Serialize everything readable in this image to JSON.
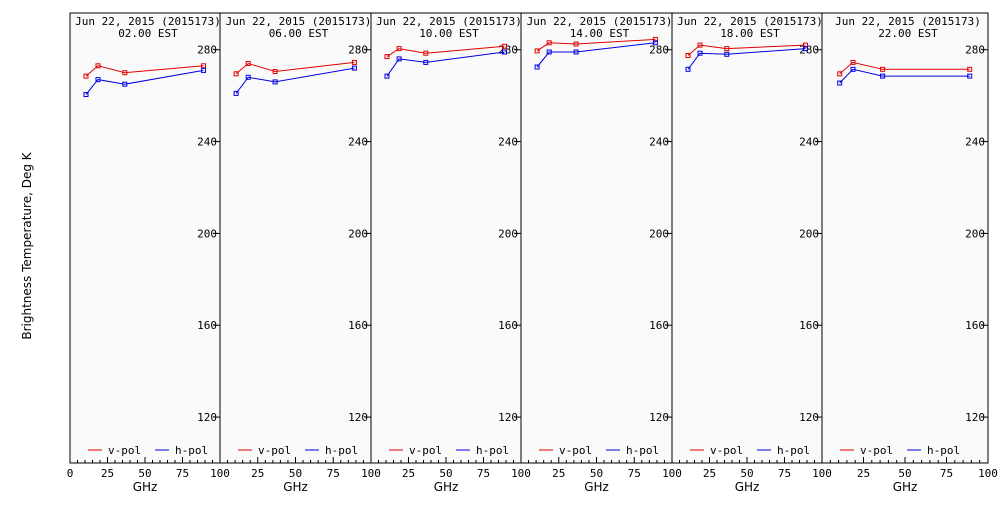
{
  "chart_data": {
    "type": "line",
    "ylabel": "Brightness Temperature, Deg K",
    "xlabel": "GHz",
    "xlim": [
      0,
      100
    ],
    "ylim": [
      100,
      296
    ],
    "yticks": [
      120,
      160,
      200,
      240,
      280
    ],
    "xticks": [
      0,
      25,
      50,
      75,
      100
    ],
    "x": [
      10.65,
      18.7,
      36.5,
      89.0
    ],
    "legend": [
      "v-pol",
      "h-pol"
    ],
    "colors": {
      "v": "#e00000",
      "h": "#0000e0"
    },
    "panels": [
      {
        "title": "Jun 22, 2015 (2015173)",
        "subtitle": "02.00 EST",
        "series": [
          {
            "name": "v-pol",
            "values": [
              268.5,
              273,
              270,
              273
            ]
          },
          {
            "name": "h-pol",
            "values": [
              260.5,
              267,
              265,
              271
            ]
          }
        ]
      },
      {
        "title": "Jun 22, 2015 (2015173)",
        "subtitle": "06.00 EST",
        "series": [
          {
            "name": "v-pol",
            "values": [
              269.5,
              274,
              270.5,
              274.5
            ]
          },
          {
            "name": "h-pol",
            "values": [
              261,
              268,
              266,
              272
            ]
          }
        ]
      },
      {
        "title": "Jun 22, 2015 (2015173)",
        "subtitle": "10.00 EST",
        "series": [
          {
            "name": "v-pol",
            "values": [
              277,
              280.5,
              278.5,
              281.5
            ]
          },
          {
            "name": "h-pol",
            "values": [
              268.5,
              276,
              274.5,
              279
            ]
          }
        ]
      },
      {
        "title": "Jun 22, 2015 (2015173)",
        "subtitle": "14.00 EST",
        "series": [
          {
            "name": "v-pol",
            "values": [
              279.5,
              283,
              282.5,
              284.5
            ]
          },
          {
            "name": "h-pol",
            "values": [
              272.5,
              279,
              279,
              283
            ]
          }
        ]
      },
      {
        "title": "Jun 22, 2015 (2015173)",
        "subtitle": "18.00 EST",
        "series": [
          {
            "name": "v-pol",
            "values": [
              277.5,
              282,
              280.5,
              282
            ]
          },
          {
            "name": "h-pol",
            "values": [
              271.5,
              278.5,
              278,
              280.5
            ]
          }
        ]
      },
      {
        "title": "Jun 22, 2015 (2015173)",
        "subtitle": "22.00 EST",
        "series": [
          {
            "name": "v-pol",
            "values": [
              269.5,
              274.5,
              271.5,
              271.5
            ]
          },
          {
            "name": "h-pol",
            "values": [
              265.5,
              271.5,
              268.5,
              268.5
            ]
          }
        ]
      }
    ]
  }
}
